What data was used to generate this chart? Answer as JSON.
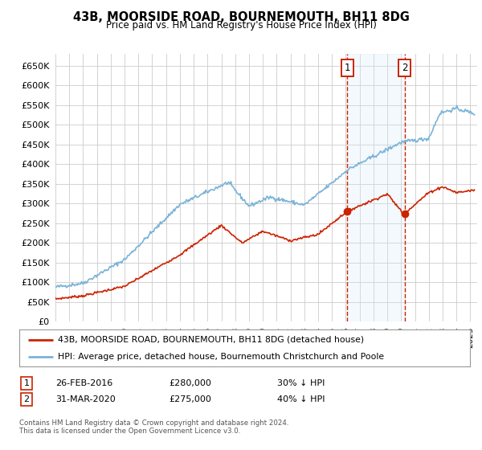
{
  "title": "43B, MOORSIDE ROAD, BOURNEMOUTH, BH11 8DG",
  "subtitle": "Price paid vs. HM Land Registry's House Price Index (HPI)",
  "ylabel_ticks": [
    0,
    50000,
    100000,
    150000,
    200000,
    250000,
    300000,
    350000,
    400000,
    450000,
    500000,
    550000,
    600000,
    650000
  ],
  "ylim": [
    0,
    680000
  ],
  "xlim_start": 1995.0,
  "xlim_end": 2025.5,
  "sale1_year": 2016.1,
  "sale1_price": 280000,
  "sale2_year": 2020.25,
  "sale2_price": 275000,
  "hpi_color": "#7ab3d8",
  "hpi_fill_color": "#d6e9f8",
  "property_color": "#cc2200",
  "vline_color": "#cc2200",
  "legend_label1": "43B, MOORSIDE ROAD, BOURNEMOUTH, BH11 8DG (detached house)",
  "legend_label2": "HPI: Average price, detached house, Bournemouth Christchurch and Poole",
  "note_row1": "Contains HM Land Registry data © Crown copyright and database right 2024.",
  "note_row2": "This data is licensed under the Open Government Licence v3.0.",
  "table_row1": [
    "1",
    "26-FEB-2016",
    "£280,000",
    "30% ↓ HPI"
  ],
  "table_row2": [
    "2",
    "31-MAR-2020",
    "£275,000",
    "40% ↓ HPI"
  ],
  "background_color": "#ffffff",
  "grid_color": "#cccccc",
  "box_edge_color": "#cc2200"
}
